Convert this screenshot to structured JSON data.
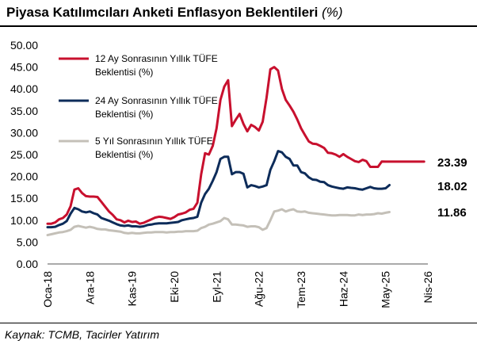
{
  "header": {
    "title": "Piyasa Katılımcıları Anketi Enflasyon Beklentileri",
    "unit": "(%)"
  },
  "footer": {
    "source": "Kaynak: TCMB, Tacirler Yatırım"
  },
  "colors": {
    "series_12m": "#c8102e",
    "series_24m": "#0d2c5a",
    "series_5y": "#c4c0b8"
  },
  "chart_data": {
    "type": "line",
    "ylim": [
      0,
      50
    ],
    "yticks": [
      "0.00",
      "5.00",
      "10.00",
      "15.00",
      "20.00",
      "25.00",
      "30.00",
      "35.00",
      "40.00",
      "45.00",
      "50.00"
    ],
    "xticks": [
      {
        "label": "Oca-18",
        "x": 0
      },
      {
        "label": "Ara-18",
        "x": 11
      },
      {
        "label": "Kas-19",
        "x": 22
      },
      {
        "label": "Eki-20",
        "x": 33
      },
      {
        "label": "Eyl-21",
        "x": 44
      },
      {
        "label": "Ağu-22",
        "x": 55
      },
      {
        "label": "Tem-23",
        "x": 66
      },
      {
        "label": "Haz-24",
        "x": 77
      },
      {
        "label": "May-25",
        "x": 88
      },
      {
        "label": "Nis-26",
        "x": 99
      }
    ],
    "x_unit": "months since Oca-18",
    "legend": [
      {
        "line1": "12 Ay Sonrasının Yıllık TÜFE",
        "line2": "Beklentisi (%)"
      },
      {
        "line1": "24 Ay Sonrasının Yıllık TÜFE",
        "line2": "Beklentisi (%)"
      },
      {
        "line1": "5 Yıl Sonrasının Yıllık TÜFE",
        "line2": "Beklentisi (%)"
      }
    ],
    "end_labels": [
      "23.39",
      "18.02",
      "11.86"
    ],
    "series": [
      {
        "name": "12 Ay Sonrasının Yıllık TÜFE Beklentisi (%)",
        "x": [
          0,
          1,
          2,
          3,
          4,
          5,
          6,
          7,
          8,
          9,
          10,
          11,
          12,
          13,
          14,
          15,
          16,
          17,
          18,
          19,
          20,
          21,
          22,
          23,
          24,
          25,
          26,
          27,
          28,
          29,
          30,
          31,
          32,
          33,
          34,
          35,
          36,
          37,
          38,
          39,
          40,
          41,
          42,
          43,
          44,
          45,
          46,
          47,
          48,
          49,
          50,
          51,
          52,
          53,
          54,
          55,
          56,
          57,
          58,
          59,
          60,
          61,
          62,
          63,
          64,
          65,
          66,
          67,
          68,
          69,
          70,
          71,
          72,
          73,
          74,
          75,
          76,
          77,
          78,
          79,
          80,
          81,
          82,
          83,
          84,
          85,
          86,
          87,
          88,
          89,
          90,
          91,
          92,
          93,
          94,
          95,
          96,
          97,
          98
        ],
        "values": [
          9.2,
          9.2,
          9.5,
          10.2,
          10.5,
          11.3,
          13.2,
          17.0,
          17.3,
          16.2,
          15.5,
          15.4,
          15.4,
          15.3,
          14.2,
          13.1,
          12.0,
          11.2,
          10.2,
          10.0,
          9.5,
          9.9,
          9.6,
          9.7,
          9.2,
          9.4,
          9.8,
          10.2,
          10.6,
          10.8,
          10.7,
          10.5,
          10.3,
          10.7,
          11.3,
          11.5,
          11.8,
          12.4,
          12.6,
          14.0,
          20.5,
          25.3,
          25.0,
          27.0,
          31.0,
          37.5,
          40.5,
          42.0,
          31.5,
          33.0,
          34.3,
          32.0,
          30.3,
          31.8,
          31.3,
          30.5,
          32.5,
          38.0,
          44.5,
          45.0,
          44.2,
          40.0,
          37.5,
          36.2,
          34.8,
          33.0,
          31.0,
          29.5,
          28.0,
          27.5,
          27.4,
          27.0,
          26.5,
          25.4,
          25.3,
          25.0,
          24.5,
          25.1,
          24.5,
          24.0,
          23.5,
          23.3,
          23.8,
          23.5,
          22.2,
          22.2,
          22.2,
          23.4,
          23.39,
          23.39,
          23.39,
          23.39,
          23.39,
          23.39,
          23.39,
          23.39,
          23.39,
          23.39,
          23.39
        ]
      },
      {
        "name": "24 Ay Sonrasının Yıllık TÜFE Beklentisi (%)",
        "x": [
          0,
          1,
          2,
          3,
          4,
          5,
          6,
          7,
          8,
          9,
          10,
          11,
          12,
          13,
          14,
          15,
          16,
          17,
          18,
          19,
          20,
          21,
          22,
          23,
          24,
          25,
          26,
          27,
          28,
          29,
          30,
          31,
          32,
          33,
          34,
          35,
          36,
          37,
          38,
          39,
          40,
          41,
          42,
          43,
          44,
          45,
          46,
          47,
          48,
          49,
          50,
          51,
          52,
          53,
          54,
          55,
          56,
          57,
          58,
          59,
          60,
          61,
          62,
          63,
          64,
          65,
          66,
          67,
          68,
          69,
          70,
          71,
          72,
          73,
          74,
          75,
          76,
          77,
          78,
          79,
          80,
          81,
          82,
          83,
          84,
          85,
          86,
          87,
          88,
          89
        ],
        "values": [
          8.4,
          8.4,
          8.5,
          8.9,
          9.2,
          9.8,
          11.5,
          12.8,
          12.5,
          12.0,
          11.8,
          12.0,
          11.6,
          11.3,
          10.5,
          10.2,
          9.9,
          9.5,
          9.1,
          8.8,
          8.7,
          8.8,
          8.6,
          8.6,
          8.5,
          8.6,
          8.9,
          9.0,
          9.2,
          9.3,
          9.3,
          9.3,
          9.4,
          9.5,
          9.6,
          10.0,
          10.2,
          10.4,
          10.5,
          10.8,
          14.0,
          16.0,
          17.2,
          19.0,
          21.0,
          24.0,
          24.5,
          24.5,
          20.5,
          21.0,
          21.0,
          20.6,
          17.5,
          18.0,
          17.8,
          17.5,
          17.7,
          18.0,
          21.5,
          23.5,
          25.8,
          25.5,
          24.5,
          24.0,
          22.5,
          22.5,
          21.0,
          20.7,
          19.8,
          19.3,
          19.2,
          18.8,
          18.7,
          18.0,
          17.7,
          17.5,
          17.3,
          17.2,
          17.5,
          17.4,
          17.3,
          17.1,
          17.0,
          17.3,
          17.6,
          17.3,
          17.2,
          17.2,
          17.3,
          18.02
        ]
      },
      {
        "name": "5 Yıl Sonrasının Yıllık TÜFE Beklentisi (%)",
        "x": [
          0,
          1,
          2,
          3,
          4,
          5,
          6,
          7,
          8,
          9,
          10,
          11,
          12,
          13,
          14,
          15,
          16,
          17,
          18,
          19,
          20,
          21,
          22,
          23,
          24,
          25,
          26,
          27,
          28,
          29,
          30,
          31,
          32,
          33,
          34,
          35,
          36,
          37,
          38,
          39,
          40,
          41,
          42,
          43,
          44,
          45,
          46,
          47,
          48,
          49,
          50,
          51,
          52,
          53,
          54,
          55,
          56,
          57,
          58,
          59,
          60,
          61,
          62,
          63,
          64,
          65,
          66,
          67,
          68,
          69,
          70,
          71,
          72,
          73,
          74,
          75,
          76,
          77,
          78,
          79,
          80,
          81,
          82,
          83,
          84,
          85,
          86,
          87,
          88,
          89
        ],
        "values": [
          6.6,
          6.8,
          7.0,
          7.2,
          7.3,
          7.5,
          7.8,
          8.5,
          8.7,
          8.5,
          8.3,
          8.5,
          8.3,
          8.0,
          7.9,
          7.9,
          7.7,
          7.6,
          7.5,
          7.4,
          7.1,
          7.0,
          7.1,
          7.0,
          7.0,
          7.1,
          7.2,
          7.2,
          7.3,
          7.3,
          7.3,
          7.2,
          7.3,
          7.3,
          7.4,
          7.4,
          7.5,
          7.5,
          7.5,
          7.6,
          8.2,
          8.5,
          9.0,
          9.2,
          9.5,
          9.8,
          10.5,
          10.2,
          9.0,
          9.0,
          8.9,
          8.8,
          8.5,
          8.6,
          8.6,
          8.4,
          7.8,
          8.2,
          10.0,
          12.0,
          12.2,
          12.5,
          12.0,
          12.3,
          12.5,
          12.0,
          11.9,
          12.0,
          11.7,
          11.6,
          11.5,
          11.4,
          11.3,
          11.2,
          11.1,
          11.1,
          11.2,
          11.2,
          11.2,
          11.1,
          11.1,
          11.3,
          11.2,
          11.3,
          11.3,
          11.4,
          11.6,
          11.5,
          11.7,
          11.86
        ]
      }
    ]
  }
}
